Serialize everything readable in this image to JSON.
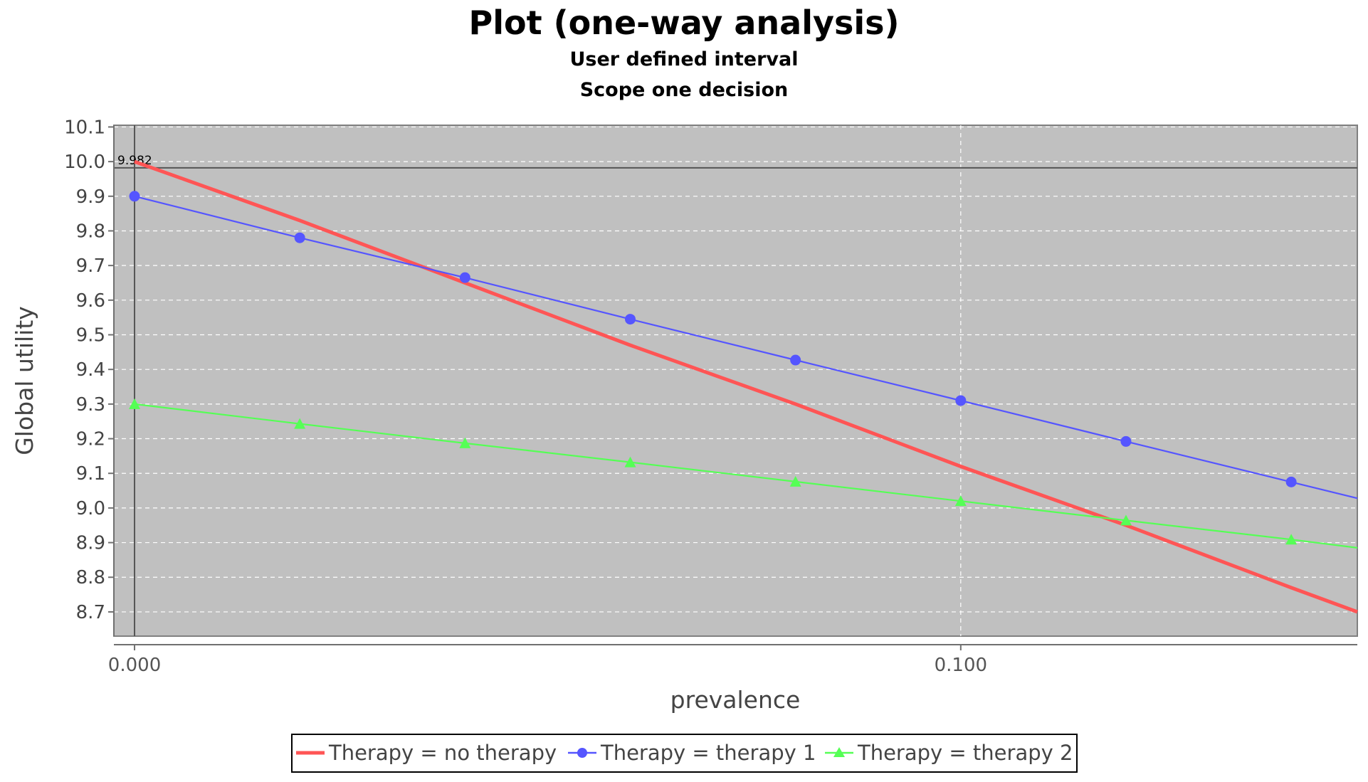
{
  "chart_data": {
    "type": "line",
    "title": "Plot (one-way analysis)",
    "subtitles": [
      "User defined interval",
      "Scope one decision"
    ],
    "xlabel": "prevalence",
    "ylabel": "Global utility",
    "xlim": [
      -0.0025,
      0.148
    ],
    "ylim": [
      8.63,
      10.105
    ],
    "x_ticks": [
      0.0,
      0.1
    ],
    "x_tick_labels": [
      "0.000",
      "0.100"
    ],
    "y_ticks": [
      8.7,
      8.8,
      8.9,
      9.0,
      9.1,
      9.2,
      9.3,
      9.4,
      9.5,
      9.6,
      9.7,
      9.8,
      9.9,
      10.0,
      10.1
    ],
    "y_tick_labels": [
      "8.7",
      "8.8",
      "8.9",
      "9.0",
      "9.1",
      "9.2",
      "9.3",
      "9.4",
      "9.5",
      "9.6",
      "9.7",
      "9.8",
      "9.9",
      "10.0",
      "10.1"
    ],
    "grid": true,
    "legend_position": "bottom",
    "reference_line": {
      "y": 9.982,
      "label": "9.982"
    },
    "series": [
      {
        "name": "Therapy = no therapy",
        "color": "#ff5555",
        "marker": "none",
        "x": [
          0.0,
          0.02,
          0.04,
          0.06,
          0.08,
          0.1,
          0.12,
          0.14,
          0.148
        ],
        "y": [
          10.0,
          9.83,
          9.65,
          9.47,
          9.3,
          9.12,
          8.95,
          8.77,
          8.7
        ]
      },
      {
        "name": "Therapy = therapy 1",
        "color": "#5555ff",
        "marker": "circle",
        "x": [
          0.0,
          0.02,
          0.04,
          0.06,
          0.08,
          0.1,
          0.12,
          0.14,
          0.148
        ],
        "y": [
          9.9,
          9.78,
          9.665,
          9.545,
          9.427,
          9.31,
          9.192,
          9.075,
          9.028
        ]
      },
      {
        "name": "Therapy = therapy 2",
        "color": "#55ff55",
        "marker": "triangle",
        "x": [
          0.0,
          0.02,
          0.04,
          0.06,
          0.08,
          0.1,
          0.12,
          0.14,
          0.148
        ],
        "y": [
          9.3,
          9.243,
          9.187,
          9.132,
          9.076,
          9.02,
          8.964,
          8.909,
          8.885
        ]
      }
    ]
  }
}
